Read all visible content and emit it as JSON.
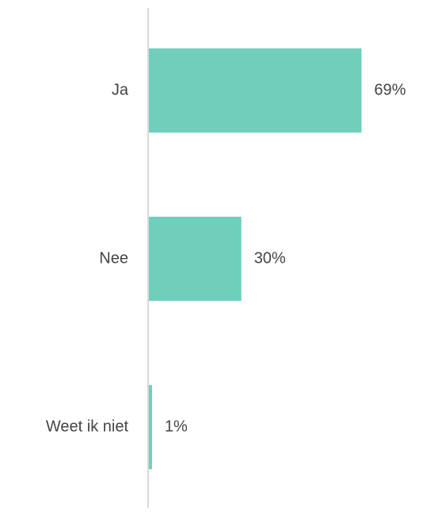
{
  "chart_data": {
    "type": "bar",
    "orientation": "horizontal",
    "categories": [
      "Ja",
      "Nee",
      "Weet ik niet"
    ],
    "values": [
      69,
      30,
      1
    ],
    "value_labels": [
      "69%",
      "30%",
      "1%"
    ],
    "color": "#6fcfbb"
  }
}
